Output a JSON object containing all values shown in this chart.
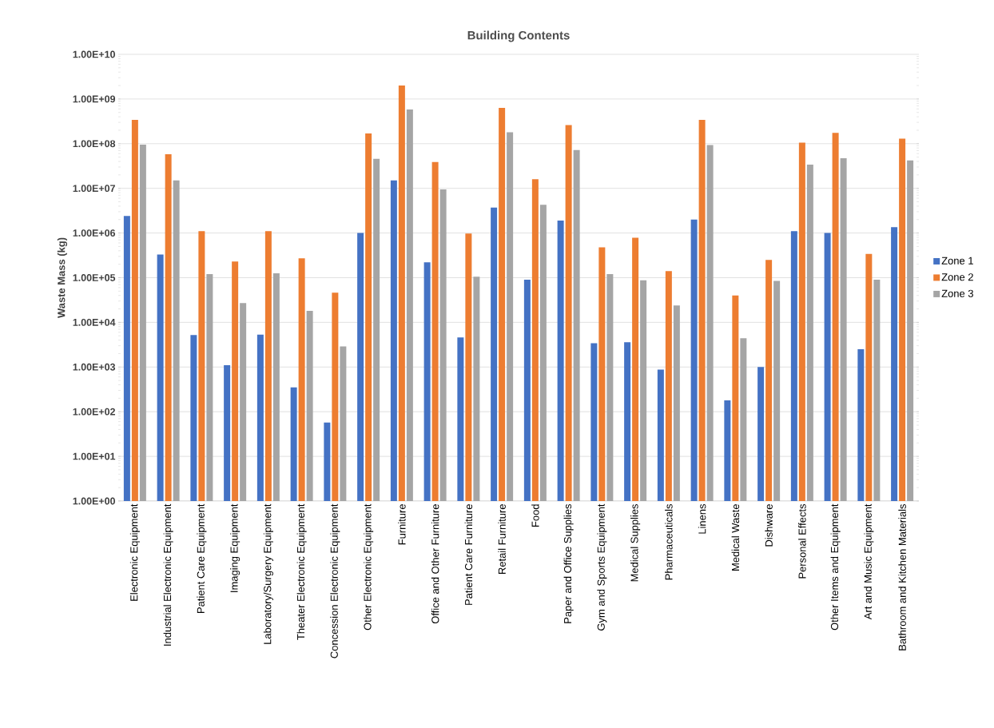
{
  "chart_data": {
    "type": "bar",
    "title": "Building Contents",
    "ylabel": "Waste Mass (kg)",
    "categories": [
      "Electronic Equipment",
      "Industrial Electronic Equipment",
      "Patient Care Equipment",
      "Imaging Equipment",
      "Laboratory/Surgery Equipment",
      "Theater Electronic Equipment",
      "Concession Electronic Equipment",
      "Other Electronic Equipment",
      "Furniture",
      "Office and Other Furniture",
      "Patient Care Furniture",
      "Retail Furniture",
      "Food",
      "Paper and Office Supplies",
      "Gym and Sports Equipment",
      "Medical Supplies",
      "Pharmaceuticals",
      "Linens",
      "Medical Waste",
      "Dishware",
      "Personal Effects",
      "Other Items and Equipment",
      "Art and Music Equipment",
      "Bathroom and Kitchen Materials"
    ],
    "series": [
      {
        "name": "Zone 1",
        "color": "#4472c4",
        "values": [
          2400000,
          330000,
          5200,
          1100,
          5300,
          350,
          57,
          1000000,
          15000000,
          220000,
          4600,
          3700000,
          90000,
          1900000,
          3400,
          3600,
          880,
          2000000,
          180,
          1000,
          1100000,
          1000000,
          2500,
          1350000
        ]
      },
      {
        "name": "Zone 2",
        "color": "#ed7d31",
        "values": [
          340000000,
          58000000,
          1100000,
          230000,
          1100000,
          270000,
          46000,
          170000000,
          2000000000,
          39000000,
          970000,
          630000000,
          16000000,
          260000000,
          480000,
          780000,
          140000,
          340000000,
          40000,
          250000,
          105000000,
          175000000,
          340000,
          130000000
        ]
      },
      {
        "name": "Zone 3",
        "color": "#a5a5a5",
        "values": [
          95000000,
          15000000,
          120000,
          27000,
          125000,
          18000,
          2900,
          46000000,
          580000000,
          9500000,
          105000,
          180000000,
          4300000,
          72000000,
          120000,
          87000,
          24000,
          93000000,
          4400,
          85000,
          34000000,
          47000000,
          90000,
          42000000
        ]
      }
    ],
    "ylim": [
      1,
      10000000000
    ],
    "log": true,
    "yticks": [
      {
        "value": 1,
        "label": "1.00E+00"
      },
      {
        "value": 10,
        "label": "1.00E+01"
      },
      {
        "value": 100,
        "label": "1.00E+02"
      },
      {
        "value": 1000,
        "label": "1.00E+03"
      },
      {
        "value": 10000,
        "label": "1.00E+04"
      },
      {
        "value": 100000,
        "label": "1.00E+05"
      },
      {
        "value": 1000000,
        "label": "1.00E+06"
      },
      {
        "value": 10000000,
        "label": "1.00E+07"
      },
      {
        "value": 100000000,
        "label": "1.00E+08"
      },
      {
        "value": 1000000000,
        "label": "1.00E+09"
      },
      {
        "value": 10000000000,
        "label": "1.00E+10"
      }
    ],
    "grid": "y",
    "legend": "right"
  }
}
